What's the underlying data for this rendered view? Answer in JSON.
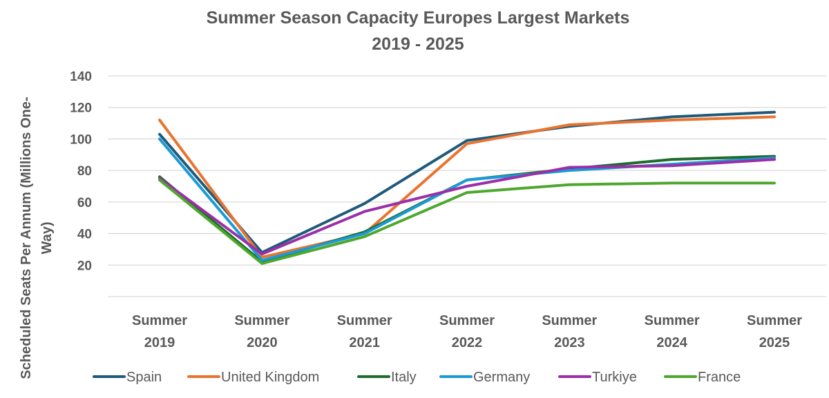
{
  "chart_data": {
    "type": "line",
    "title": "Summer Season Capacity Europes Largest Markets",
    "subtitle": "2019 - 2025",
    "xlabel": "",
    "ylabel_lines": [
      "Scheduled Seats Per Annum (Millions One-",
      "Way)"
    ],
    "categories": [
      [
        "Summer",
        "2019"
      ],
      [
        "Summer",
        "2020"
      ],
      [
        "Summer",
        "2021"
      ],
      [
        "Summer",
        "2022"
      ],
      [
        "Summer",
        "2023"
      ],
      [
        "Summer",
        "2024"
      ],
      [
        "Summer",
        "2025"
      ]
    ],
    "yticks": [
      20,
      40,
      60,
      80,
      100,
      120,
      140
    ],
    "ylim": [
      0,
      140
    ],
    "grid": true,
    "legend_position": "bottom",
    "series": [
      {
        "name": "Spain",
        "color": "#1f5a7a",
        "values": [
          103,
          28,
          59,
          99,
          108,
          114,
          117
        ]
      },
      {
        "name": "United Kingdom",
        "color": "#e8742f",
        "values": [
          112,
          25,
          40,
          97,
          109,
          112,
          114
        ]
      },
      {
        "name": "Italy",
        "color": "#1e6b2c",
        "values": [
          76,
          22,
          41,
          74,
          81,
          87,
          89
        ]
      },
      {
        "name": "Germany",
        "color": "#1a9ad6",
        "values": [
          100,
          23,
          40,
          74,
          80,
          84,
          88
        ]
      },
      {
        "name": "Turkiye",
        "color": "#9b2fa8",
        "values": [
          75,
          27,
          54,
          70,
          82,
          83,
          87
        ]
      },
      {
        "name": "France",
        "color": "#4ea72e",
        "values": [
          74,
          21,
          38,
          66,
          71,
          72,
          72
        ]
      }
    ]
  }
}
